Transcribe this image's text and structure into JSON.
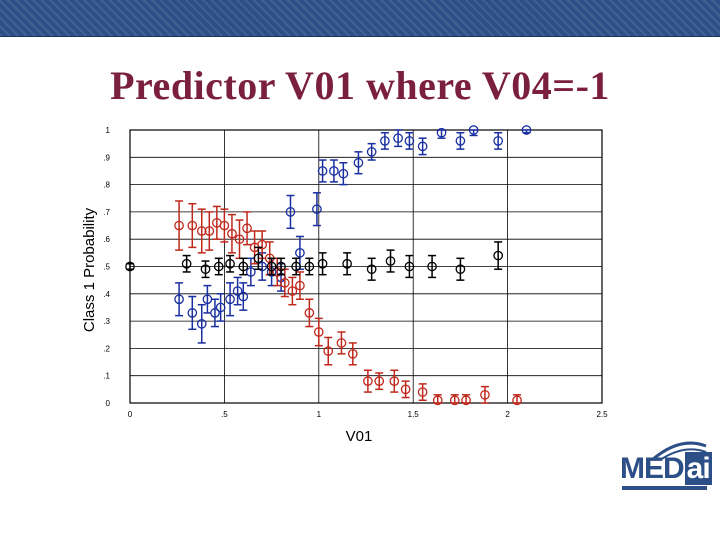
{
  "slide": {
    "title": "Predictor V01 where V04=-1"
  },
  "logo": {
    "text_prefix": "MED",
    "text_suffix": "ai",
    "brand_color": "#2b4f86"
  },
  "colors": {
    "band": "#2b4f86",
    "title": "#7a1f3d",
    "series_blue": "#1a2fa0",
    "series_red": "#c0281c",
    "series_black": "#000000"
  },
  "chart_data": {
    "type": "scatter",
    "xlabel": "V01",
    "ylabel": "Class 1 Probability",
    "xlim": [
      0,
      2.5
    ],
    "ylim": [
      0,
      1
    ],
    "x_ticks": [
      "0",
      ".5",
      "1",
      "1.5",
      "2",
      "2.5"
    ],
    "y_ticks": [
      "0",
      ".1",
      ".2",
      ".3",
      ".4",
      ".5",
      ".6",
      ".7",
      ".8",
      ".9",
      "1"
    ],
    "x_tick_values": [
      0,
      0.5,
      1,
      1.5,
      2,
      2.5
    ],
    "y_tick_values": [
      0,
      0.1,
      0.2,
      0.3,
      0.4,
      0.5,
      0.6,
      0.7,
      0.8,
      0.9,
      1
    ],
    "grid": "major x and y",
    "series": [
      {
        "color": "blue",
        "points": [
          {
            "x": 0.26,
            "y": 0.38,
            "err": 0.06
          },
          {
            "x": 0.33,
            "y": 0.33,
            "err": 0.06
          },
          {
            "x": 0.38,
            "y": 0.29,
            "err": 0.07
          },
          {
            "x": 0.41,
            "y": 0.38,
            "err": 0.05
          },
          {
            "x": 0.45,
            "y": 0.33,
            "err": 0.05
          },
          {
            "x": 0.48,
            "y": 0.35,
            "err": 0.05
          },
          {
            "x": 0.53,
            "y": 0.38,
            "err": 0.06
          },
          {
            "x": 0.57,
            "y": 0.41,
            "err": 0.05
          },
          {
            "x": 0.6,
            "y": 0.39,
            "err": 0.05
          },
          {
            "x": 0.64,
            "y": 0.48,
            "err": 0.05
          },
          {
            "x": 0.7,
            "y": 0.5,
            "err": 0.05
          },
          {
            "x": 0.75,
            "y": 0.48,
            "err": 0.05
          },
          {
            "x": 0.8,
            "y": 0.46,
            "err": 0.05
          },
          {
            "x": 0.85,
            "y": 0.7,
            "err": 0.06
          },
          {
            "x": 0.9,
            "y": 0.55,
            "err": 0.06
          },
          {
            "x": 0.99,
            "y": 0.71,
            "err": 0.06
          },
          {
            "x": 1.02,
            "y": 0.85,
            "err": 0.04
          },
          {
            "x": 1.08,
            "y": 0.85,
            "err": 0.04
          },
          {
            "x": 1.13,
            "y": 0.84,
            "err": 0.04
          },
          {
            "x": 1.21,
            "y": 0.88,
            "err": 0.04
          },
          {
            "x": 1.28,
            "y": 0.92,
            "err": 0.03
          },
          {
            "x": 1.35,
            "y": 0.96,
            "err": 0.03
          },
          {
            "x": 1.42,
            "y": 0.97,
            "err": 0.03
          },
          {
            "x": 1.48,
            "y": 0.96,
            "err": 0.03
          },
          {
            "x": 1.55,
            "y": 0.94,
            "err": 0.03
          },
          {
            "x": 1.65,
            "y": 0.99,
            "err": 0.02
          },
          {
            "x": 1.75,
            "y": 0.96,
            "err": 0.03
          },
          {
            "x": 1.82,
            "y": 1.0,
            "err": 0.02
          },
          {
            "x": 1.95,
            "y": 0.96,
            "err": 0.03
          },
          {
            "x": 2.1,
            "y": 1.0,
            "err": 0.01
          }
        ]
      },
      {
        "color": "red",
        "points": [
          {
            "x": 0.26,
            "y": 0.65,
            "err": 0.09
          },
          {
            "x": 0.33,
            "y": 0.65,
            "err": 0.08
          },
          {
            "x": 0.38,
            "y": 0.63,
            "err": 0.08
          },
          {
            "x": 0.42,
            "y": 0.63,
            "err": 0.07
          },
          {
            "x": 0.46,
            "y": 0.66,
            "err": 0.06
          },
          {
            "x": 0.5,
            "y": 0.65,
            "err": 0.06
          },
          {
            "x": 0.54,
            "y": 0.62,
            "err": 0.07
          },
          {
            "x": 0.58,
            "y": 0.6,
            "err": 0.07
          },
          {
            "x": 0.62,
            "y": 0.64,
            "err": 0.06
          },
          {
            "x": 0.66,
            "y": 0.57,
            "err": 0.06
          },
          {
            "x": 0.7,
            "y": 0.58,
            "err": 0.05
          },
          {
            "x": 0.74,
            "y": 0.53,
            "err": 0.06
          },
          {
            "x": 0.78,
            "y": 0.48,
            "err": 0.05
          },
          {
            "x": 0.82,
            "y": 0.44,
            "err": 0.05
          },
          {
            "x": 0.86,
            "y": 0.41,
            "err": 0.05
          },
          {
            "x": 0.9,
            "y": 0.43,
            "err": 0.05
          },
          {
            "x": 0.95,
            "y": 0.33,
            "err": 0.05
          },
          {
            "x": 1.0,
            "y": 0.26,
            "err": 0.05
          },
          {
            "x": 1.05,
            "y": 0.19,
            "err": 0.05
          },
          {
            "x": 1.12,
            "y": 0.22,
            "err": 0.04
          },
          {
            "x": 1.18,
            "y": 0.18,
            "err": 0.04
          },
          {
            "x": 1.26,
            "y": 0.08,
            "err": 0.04
          },
          {
            "x": 1.32,
            "y": 0.08,
            "err": 0.03
          },
          {
            "x": 1.4,
            "y": 0.08,
            "err": 0.04
          },
          {
            "x": 1.46,
            "y": 0.05,
            "err": 0.03
          },
          {
            "x": 1.55,
            "y": 0.04,
            "err": 0.03
          },
          {
            "x": 1.63,
            "y": 0.01,
            "err": 0.02
          },
          {
            "x": 1.72,
            "y": 0.01,
            "err": 0.02
          },
          {
            "x": 1.78,
            "y": 0.01,
            "err": 0.02
          },
          {
            "x": 1.88,
            "y": 0.03,
            "err": 0.03
          },
          {
            "x": 2.05,
            "y": 0.01,
            "err": 0.02
          }
        ]
      },
      {
        "color": "black",
        "points": [
          {
            "x": 0.0,
            "y": 0.5,
            "err": 0.01
          },
          {
            "x": 0.3,
            "y": 0.51,
            "err": 0.03
          },
          {
            "x": 0.4,
            "y": 0.49,
            "err": 0.03
          },
          {
            "x": 0.47,
            "y": 0.5,
            "err": 0.03
          },
          {
            "x": 0.53,
            "y": 0.51,
            "err": 0.03
          },
          {
            "x": 0.6,
            "y": 0.5,
            "err": 0.03
          },
          {
            "x": 0.68,
            "y": 0.53,
            "err": 0.04
          },
          {
            "x": 0.75,
            "y": 0.5,
            "err": 0.03
          },
          {
            "x": 0.8,
            "y": 0.5,
            "err": 0.03
          },
          {
            "x": 0.88,
            "y": 0.5,
            "err": 0.03
          },
          {
            "x": 0.95,
            "y": 0.5,
            "err": 0.03
          },
          {
            "x": 1.02,
            "y": 0.51,
            "err": 0.04
          },
          {
            "x": 1.15,
            "y": 0.51,
            "err": 0.04
          },
          {
            "x": 1.28,
            "y": 0.49,
            "err": 0.04
          },
          {
            "x": 1.38,
            "y": 0.52,
            "err": 0.04
          },
          {
            "x": 1.48,
            "y": 0.5,
            "err": 0.04
          },
          {
            "x": 1.6,
            "y": 0.5,
            "err": 0.04
          },
          {
            "x": 1.75,
            "y": 0.49,
            "err": 0.04
          },
          {
            "x": 1.95,
            "y": 0.54,
            "err": 0.05
          }
        ]
      }
    ]
  }
}
